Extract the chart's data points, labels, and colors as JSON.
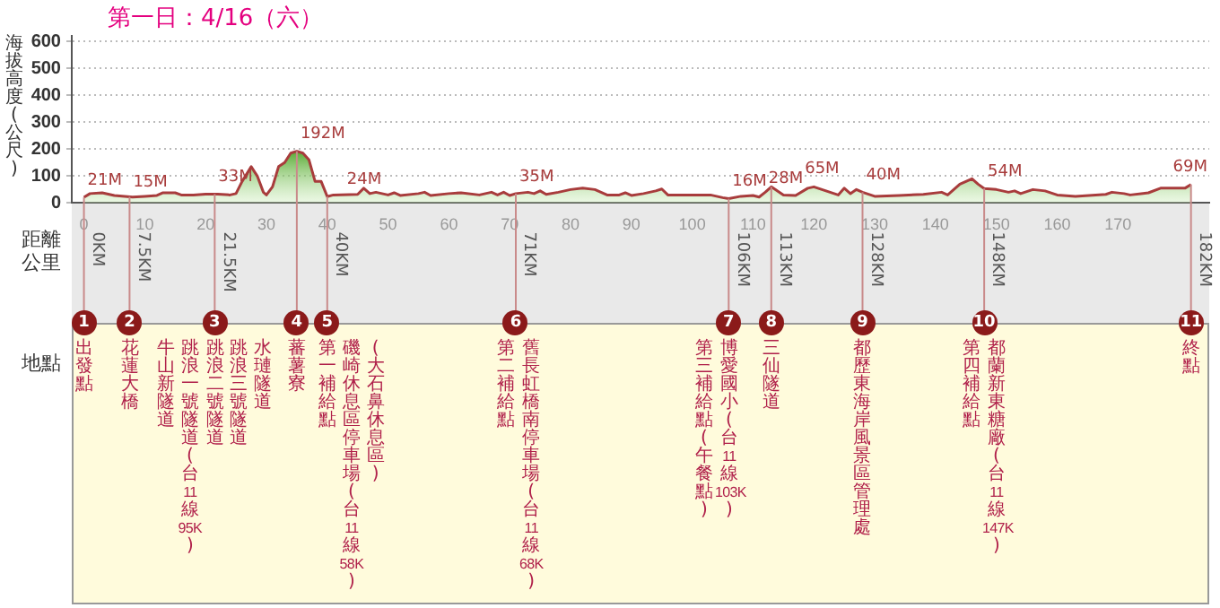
{
  "chart_data": {
    "type": "area",
    "title": "第一日：4/16（六）",
    "ylabel": "海拔高度(公尺)",
    "x": [
      0,
      1,
      3,
      5,
      8,
      10,
      12,
      13,
      15,
      16,
      18,
      20,
      22,
      24,
      25,
      26,
      27.5,
      28.5,
      29.5,
      30,
      31,
      32,
      33,
      34,
      35,
      36,
      37,
      37.5,
      38,
      39,
      40,
      41,
      45,
      46,
      47,
      48,
      50,
      51,
      52,
      55,
      56,
      57,
      60,
      62,
      65,
      67,
      68,
      69,
      70,
      71,
      73,
      74,
      75,
      76,
      78,
      80,
      82,
      84,
      86,
      88,
      89,
      90,
      92,
      94,
      95,
      96,
      100,
      103,
      105,
      106,
      108,
      110,
      111,
      112,
      113,
      115,
      117,
      119,
      120,
      122,
      124,
      125,
      126,
      127,
      128,
      130,
      134,
      138,
      141,
      142,
      144,
      146,
      147,
      148,
      150,
      152,
      153,
      154,
      156,
      158,
      160,
      163,
      168,
      169,
      171,
      172,
      175,
      177,
      181,
      182
    ],
    "series": [
      {
        "color": "#a83c3c",
        "values": [
          21,
          35,
          38,
          28,
          22,
          25,
          28,
          38,
          38,
          30,
          30,
          33,
          33,
          30,
          35,
          80,
          135,
          100,
          40,
          30,
          60,
          135,
          150,
          185,
          192,
          185,
          160,
          120,
          80,
          80,
          24,
          30,
          32,
          55,
          35,
          40,
          30,
          38,
          28,
          35,
          40,
          28,
          35,
          38,
          30,
          40,
          30,
          40,
          28,
          35,
          40,
          35,
          45,
          32,
          40,
          50,
          55,
          50,
          30,
          30,
          38,
          28,
          35,
          45,
          52,
          30,
          30,
          30,
          20,
          16,
          25,
          28,
          22,
          40,
          60,
          30,
          28,
          55,
          60,
          45,
          30,
          55,
          35,
          50,
          40,
          25,
          28,
          32,
          40,
          30,
          70,
          90,
          70,
          54,
          50,
          40,
          45,
          35,
          50,
          45,
          30,
          25,
          32,
          40,
          35,
          30,
          38,
          55,
          55,
          69
        ]
      }
    ],
    "xlim": [
      -2,
      185
    ],
    "ylim": [
      0,
      620
    ],
    "xticks": [
      0,
      10,
      20,
      30,
      40,
      50,
      60,
      70,
      80,
      90,
      100,
      110,
      120,
      130,
      140,
      150,
      160,
      170
    ],
    "yticks": [
      0,
      100,
      200,
      300,
      400,
      500,
      600
    ],
    "grid": "y",
    "ref_lines": [
      {
        "axis": "x",
        "value": 0,
        "label": "0KM",
        "color": "#c98a8a"
      },
      {
        "axis": "x",
        "value": 7.5,
        "label": "7.5KM",
        "color": "#c98a8a"
      },
      {
        "axis": "x",
        "value": 21.5,
        "label": "21.5KM",
        "color": "#c98a8a"
      },
      {
        "axis": "x",
        "value": 35,
        "color": "#c98a8a"
      },
      {
        "axis": "x",
        "value": 40,
        "label": "40KM",
        "color": "#c98a8a"
      },
      {
        "axis": "x",
        "value": 71,
        "label": "71KM",
        "color": "#c98a8a"
      },
      {
        "axis": "x",
        "value": 106,
        "label": "106KM",
        "color": "#c98a8a"
      },
      {
        "axis": "x",
        "value": 113,
        "label": "113KM",
        "color": "#c98a8a"
      },
      {
        "axis": "x",
        "value": 128,
        "label": "128KM",
        "color": "#c98a8a"
      },
      {
        "axis": "x",
        "value": 148,
        "label": "148KM",
        "color": "#c98a8a"
      },
      {
        "axis": "x",
        "value": 182,
        "label": "182KM",
        "color": "#c98a8a"
      }
    ],
    "annotations": [
      "距離公里",
      "地點",
      "1",
      "2",
      "3",
      "4",
      "5",
      "6",
      "7",
      "8",
      "9",
      "10",
      "11",
      {
        "text": "21M",
        "x": 0,
        "y": 21
      },
      {
        "text": "15M",
        "x": 7.5,
        "y": 15
      },
      {
        "text": "33M",
        "x": 21.5,
        "y": 33
      },
      {
        "text": "192M",
        "x": 35,
        "y": 192
      },
      {
        "text": "24M",
        "x": 40,
        "y": 24
      },
      {
        "text": "35M",
        "x": 71,
        "y": 35
      },
      {
        "text": "16M",
        "x": 106,
        "y": 16
      },
      {
        "text": "28M",
        "x": 110,
        "y": 28
      },
      {
        "text": "65M",
        "x": 113,
        "y": 65
      },
      {
        "text": "40M",
        "x": 128,
        "y": 40
      },
      {
        "text": "54M",
        "x": 148,
        "y": 54
      },
      {
        "text": "69M",
        "x": 182,
        "y": 69
      },
      "出發點",
      "花蓮大橋",
      "牛山新隧道",
      "跳浪一號隧道(台11線95K)",
      "跳浪二號隧道",
      "跳浪三號隧道",
      "水璉隧道",
      "蕃薯寮",
      "第一補給點",
      "磯崎休息區停車場(台11線58K)",
      "(大石鼻休息區)",
      "第二補給點",
      "舊長虹橋南停車場(台11線68K)",
      "第三補給點(午餐點)",
      "博愛國小(台11線103K)",
      "三仙隧道",
      "都歷東海岸風景區管理處",
      "第四補給點",
      "都蘭新東糖廠(台11線147K)",
      "終點"
    ]
  }
}
